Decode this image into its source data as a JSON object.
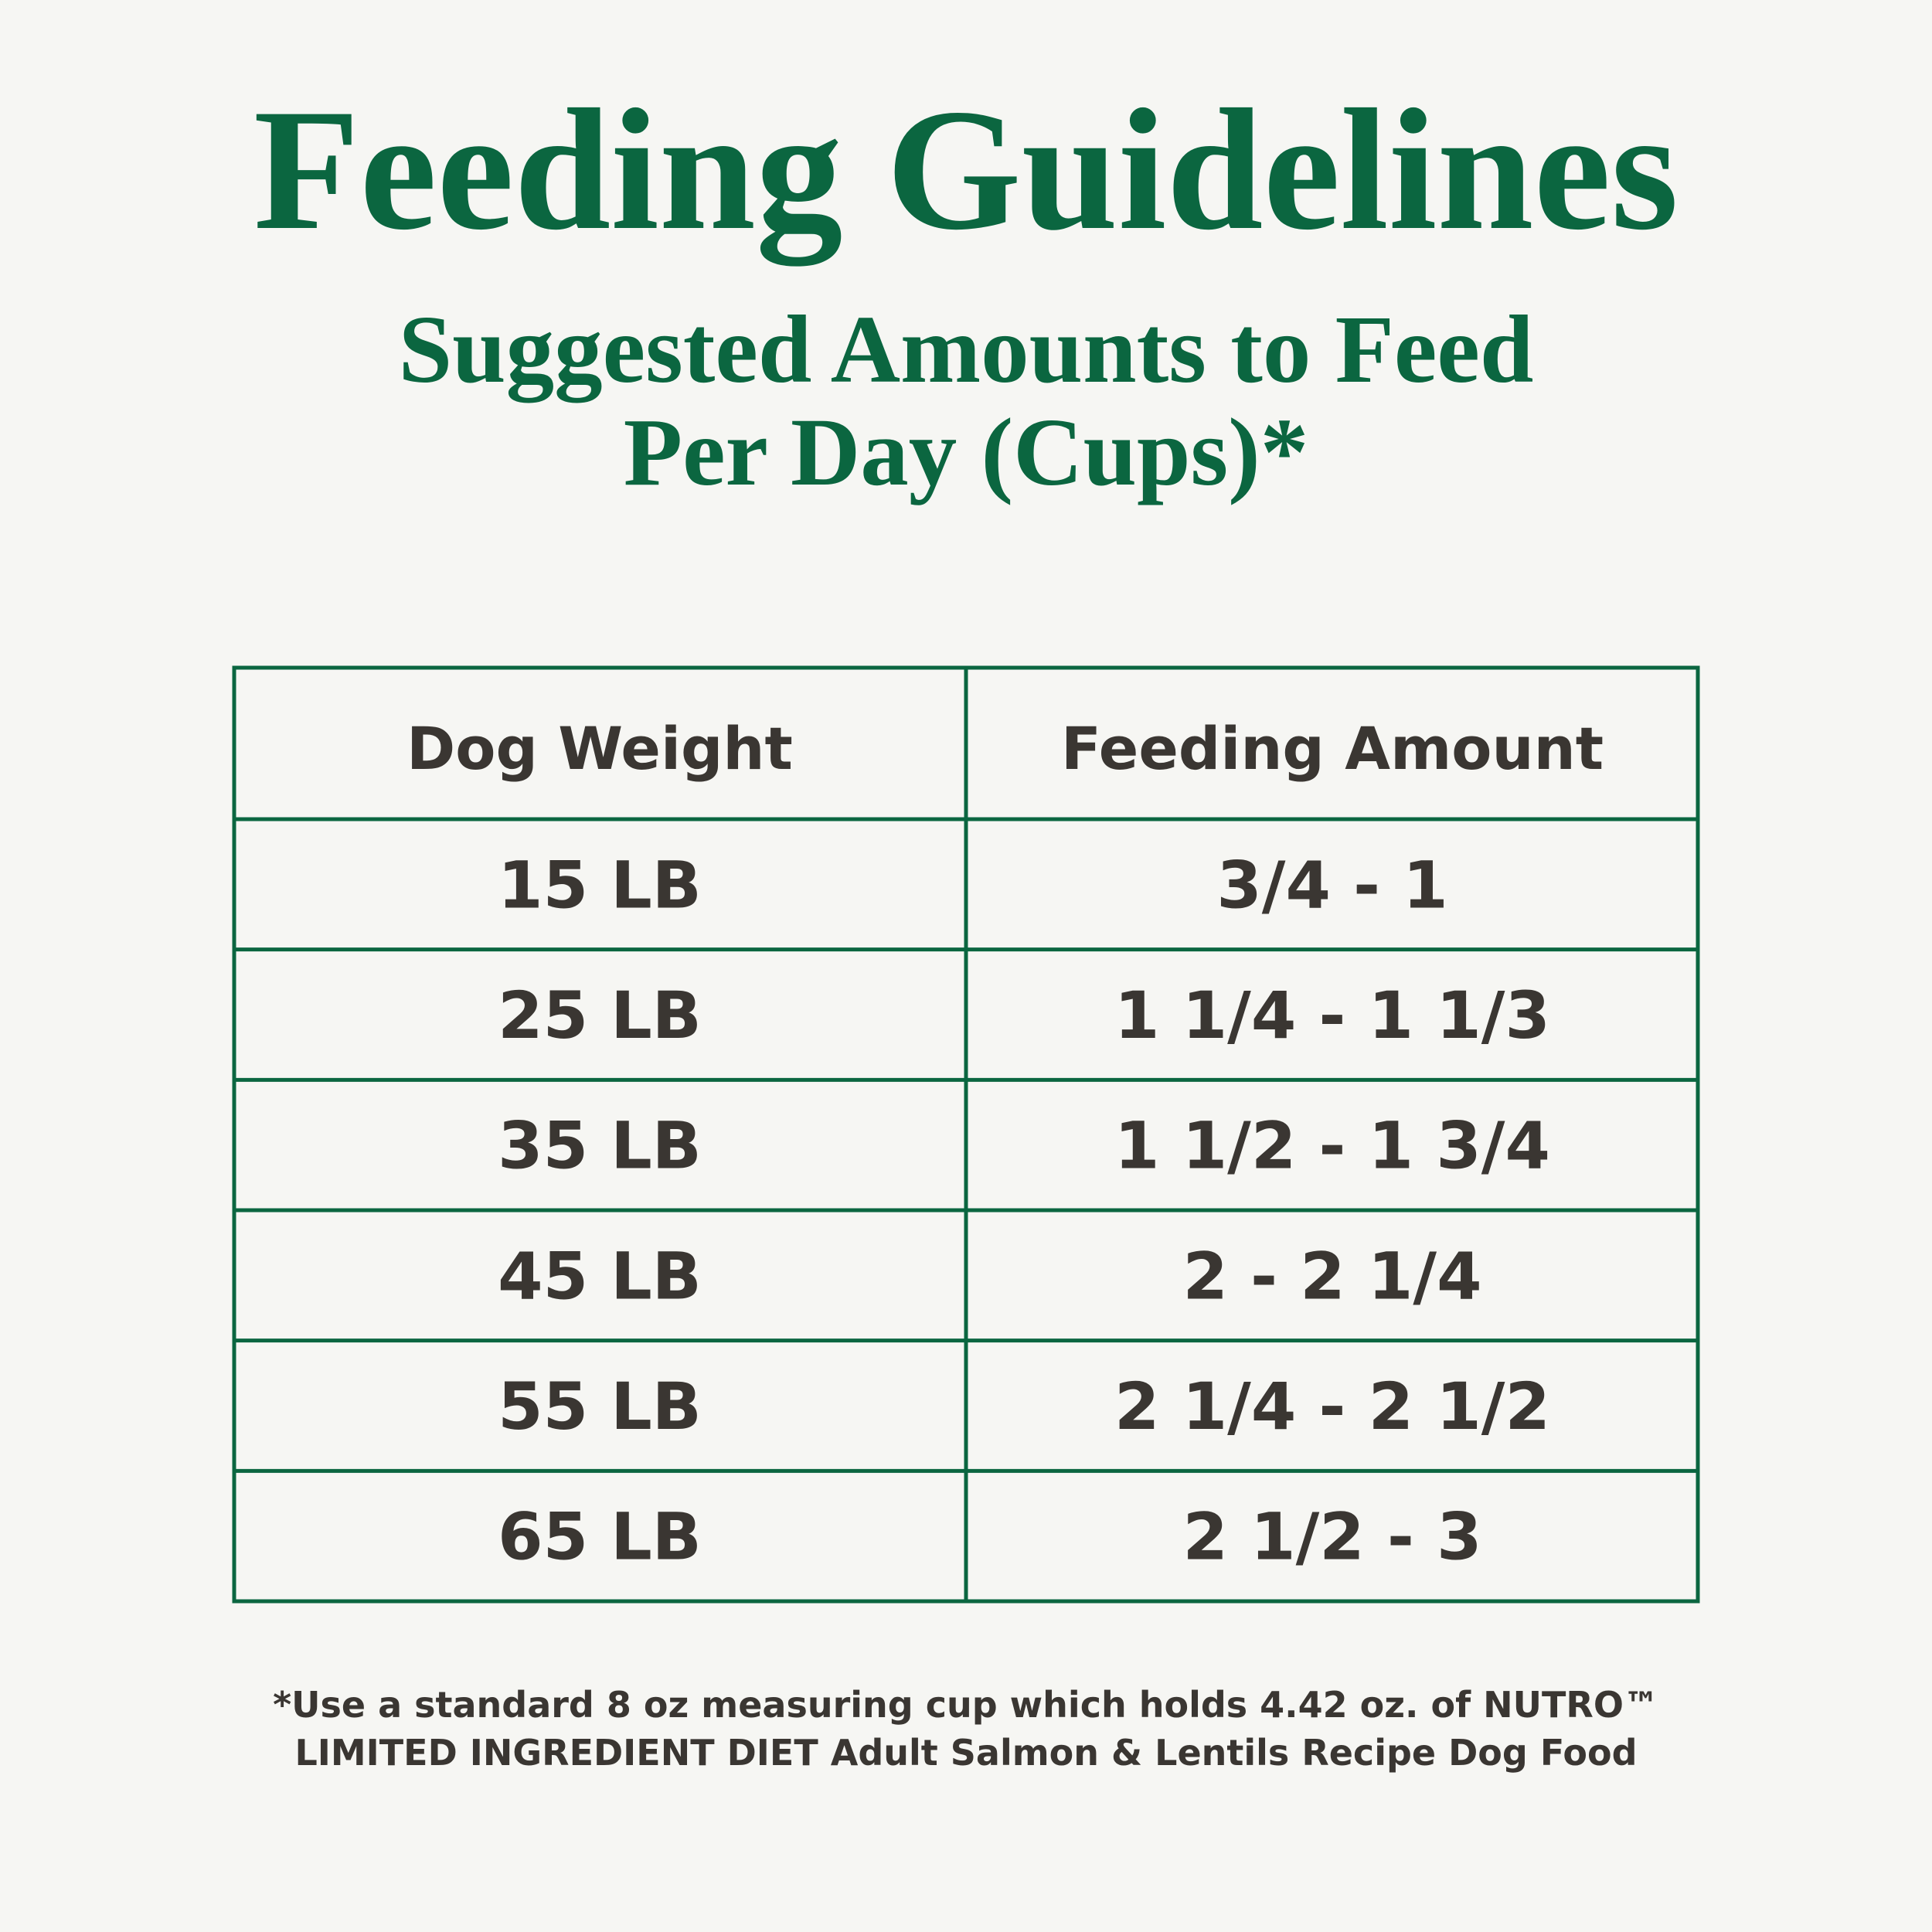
{
  "header": {
    "title": "Feeding Guidelines",
    "subtitle": [
      "Suggested Amounts to Feed",
      "Per Day (Cups)*"
    ]
  },
  "table": {
    "columns": [
      "Dog Weight",
      "Feeding Amount"
    ],
    "rows": [
      [
        "15 LB",
        "3/4 - 1"
      ],
      [
        "25 LB",
        "1 1/4 - 1 1/3"
      ],
      [
        "35 LB",
        "1 1/2 - 1 3/4"
      ],
      [
        "45 LB",
        "2 - 2 1/4"
      ],
      [
        "55 LB",
        "2 1/4 - 2 1/2"
      ],
      [
        "65 LB",
        "2 1/2 - 3"
      ]
    ]
  },
  "footnote": [
    "*Use a standard 8 oz measuring cup which holds 4.42 oz. of NUTRO™",
    "LIMITED INGREDIENT DIET Adult Salmon & Lentils Recipe Dog Food"
  ]
}
